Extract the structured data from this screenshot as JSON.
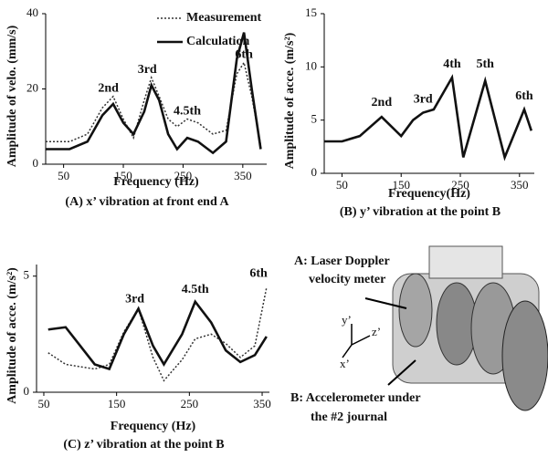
{
  "chart_data": [
    {
      "type": "line",
      "title": "(A) x’ vibration at front end A",
      "x_label": "Frequency (Hz)",
      "y_label": "Amplitude of velo. (mm/s)",
      "x": [
        20,
        60,
        90,
        115,
        133,
        150,
        167,
        185,
        197,
        210,
        225,
        240,
        257,
        275,
        300,
        322,
        340,
        352,
        365,
        380
      ],
      "series": [
        {
          "name": "Measurement",
          "style": "dotted",
          "color": "#333333",
          "values": [
            6,
            6,
            8,
            15,
            18,
            12,
            7,
            17,
            23,
            18,
            12,
            10,
            12,
            11,
            8,
            9,
            24,
            27,
            18,
            5
          ]
        },
        {
          "name": "Calculation",
          "style": "solid",
          "color": "#111111",
          "values": [
            4,
            4,
            6,
            13,
            16,
            11,
            8,
            14,
            21,
            17,
            8,
            4,
            7,
            6,
            3,
            6,
            28,
            35,
            20,
            4
          ]
        }
      ],
      "xlim": [
        20,
        390
      ],
      "ylim": [
        0,
        40
      ],
      "xticks": [
        50,
        150,
        250,
        350
      ],
      "yticks": [
        0,
        20,
        40
      ],
      "legend": "top-right",
      "annotations": [
        {
          "text": "2nd",
          "x": 125,
          "y": 20
        },
        {
          "text": "3rd",
          "x": 190,
          "y": 25
        },
        {
          "text": "4.5th",
          "x": 257,
          "y": 14
        },
        {
          "text": "6th",
          "x": 352,
          "y": 29
        }
      ]
    },
    {
      "type": "line",
      "title": "(B) y’ vibration at the point B",
      "x_label": "Frequency(Hz)",
      "y_label": "Amplitude of acce. (m/s²)",
      "x": [
        20,
        50,
        80,
        117,
        150,
        170,
        187,
        205,
        236,
        255,
        292,
        325,
        358,
        370
      ],
      "series": [
        {
          "style": "solid",
          "color": "#111111",
          "values": [
            3,
            3,
            3.5,
            5.3,
            3.5,
            5,
            5.7,
            6,
            9,
            1.5,
            8.7,
            1.5,
            6,
            4
          ]
        }
      ],
      "xlim": [
        20,
        375
      ],
      "ylim": [
        0,
        15
      ],
      "xticks": [
        50,
        150,
        250,
        350
      ],
      "yticks": [
        0,
        5,
        10,
        15
      ],
      "annotations": [
        {
          "text": "2nd",
          "x": 117,
          "y": 6.6
        },
        {
          "text": "3rd",
          "x": 187,
          "y": 6.9
        },
        {
          "text": "4th",
          "x": 236,
          "y": 10.2
        },
        {
          "text": "5th",
          "x": 292,
          "y": 10.2
        },
        {
          "text": "6th",
          "x": 358,
          "y": 7.2
        }
      ]
    },
    {
      "type": "line",
      "title": "(C) z’ vibration at the point B",
      "x_label": "Frequency (Hz)",
      "y_label": "Amplitude of acce. (m/s²)",
      "x": [
        56,
        80,
        100,
        120,
        140,
        160,
        180,
        200,
        215,
        240,
        258,
        280,
        300,
        320,
        340,
        356
      ],
      "series": [
        {
          "style": "dotted",
          "color": "#333333",
          "values": [
            1.7,
            1.2,
            1.1,
            1.0,
            1.2,
            2.6,
            3.6,
            1.5,
            0.5,
            1.4,
            2.3,
            2.5,
            2.1,
            1.5,
            2.0,
            4.5
          ]
        },
        {
          "style": "solid",
          "color": "#111111",
          "values": [
            2.7,
            2.8,
            2.0,
            1.2,
            1.0,
            2.5,
            3.6,
            2.0,
            1.2,
            2.5,
            3.9,
            3.0,
            1.8,
            1.3,
            1.6,
            2.4
          ]
        }
      ],
      "xlim": [
        40,
        360
      ],
      "ylim": [
        0,
        5.5
      ],
      "xticks": [
        50,
        150,
        250,
        350
      ],
      "yticks": [
        0,
        5
      ],
      "annotations": [
        {
          "text": "3rd",
          "x": 175,
          "y": 4.0
        },
        {
          "text": "4.5th",
          "x": 258,
          "y": 4.4
        },
        {
          "text": "6th",
          "x": 345,
          "y": 5.1
        }
      ]
    }
  ],
  "diagram": {
    "label_a": [
      "A: Laser Doppler",
      "velocity meter"
    ],
    "label_b": [
      "B: Accelerometer under",
      "the #2 journal"
    ],
    "axes": [
      "y’",
      "z’",
      "x’"
    ]
  }
}
